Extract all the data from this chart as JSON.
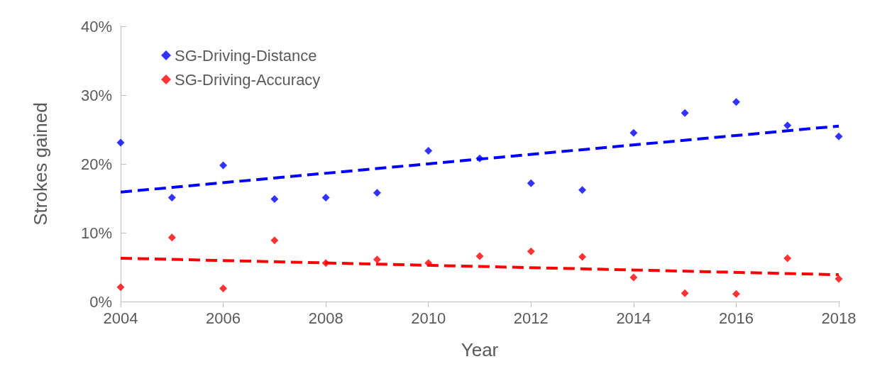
{
  "chart_data": {
    "type": "scatter",
    "xlabel": "Year",
    "ylabel": "Strokes gained",
    "x": [
      2004,
      2005,
      2006,
      2007,
      2008,
      2009,
      2010,
      2011,
      2012,
      2013,
      2014,
      2015,
      2016,
      2017,
      2018
    ],
    "series": [
      {
        "name": "SG-Driving-Distance",
        "color": "#0000ff",
        "marker": "diamond",
        "values": [
          23.1,
          15.1,
          19.8,
          14.9,
          15.1,
          15.8,
          21.9,
          20.8,
          17.2,
          16.2,
          24.5,
          27.4,
          29.0,
          25.6,
          24.0
        ]
      },
      {
        "name": "SG-Driving-Accuracy",
        "color": "#ff0000",
        "marker": "diamond",
        "values": [
          2.1,
          9.3,
          1.9,
          8.9,
          5.6,
          6.1,
          5.6,
          6.6,
          7.3,
          6.5,
          3.5,
          1.2,
          1.1,
          6.3,
          3.3
        ]
      },
      {
        "type": "line",
        "color": "#0000ff",
        "marker": "none",
        "line_style": "dashed",
        "values": [
          15.9,
          null,
          null,
          null,
          null,
          null,
          null,
          null,
          null,
          null,
          null,
          null,
          null,
          null,
          25.5
        ]
      },
      {
        "type": "line",
        "color": "#ff0000",
        "marker": "none",
        "line_style": "dashed",
        "values": [
          6.3,
          null,
          null,
          null,
          null,
          null,
          null,
          null,
          null,
          null,
          null,
          null,
          null,
          null,
          3.9
        ]
      }
    ],
    "xlim": [
      2004,
      2018
    ],
    "xticks": [
      2004,
      2006,
      2008,
      2010,
      2012,
      2014,
      2016,
      2018
    ],
    "ylim": [
      0,
      40
    ],
    "yticks": [
      {
        "value": 0,
        "label": "0%"
      },
      {
        "value": 10,
        "label": "10%"
      },
      {
        "value": 20,
        "label": "20%"
      },
      {
        "value": 30,
        "label": "30%"
      },
      {
        "value": 40,
        "label": "40%"
      }
    ],
    "grid": false,
    "legend": "top left"
  }
}
